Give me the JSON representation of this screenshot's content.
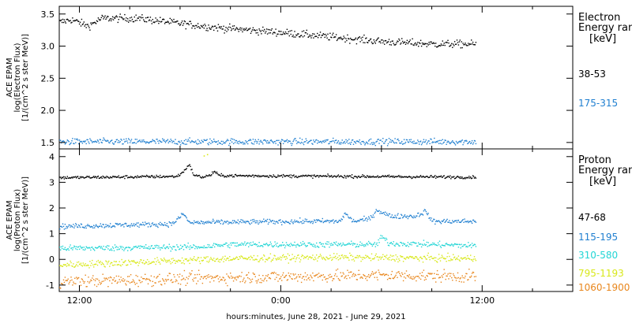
{
  "chart_data": {
    "type": "scatter",
    "xlabel": "hours:minutes, June 28, 2021 - June 29, 2021",
    "x_tick_labels": [
      "12:00",
      "0:00",
      "12:00"
    ],
    "x_tick_hours": [
      12,
      24,
      36
    ],
    "x_range_hours": [
      10.8,
      41.4
    ],
    "x_minor_step_hours": 3,
    "data_range_hours": [
      10.8,
      35.6
    ],
    "panels": [
      {
        "ylabel_lines": [
          "ACE EPAM",
          "log(Electron Flux)",
          "[1/(cm^2 s ster MeV)]"
        ],
        "ylim": [
          1.4,
          3.62
        ],
        "y_ticks": [
          1.5,
          2.0,
          2.5,
          3.0,
          3.5
        ],
        "y_tick_labels": [
          "1.5",
          "2.0",
          "2.5",
          "3.0",
          "3.5"
        ],
        "legend_title": [
          "Electron",
          "Energy range",
          "[keV]"
        ],
        "series": [
          {
            "name": "38-53",
            "color": "#000000",
            "noise": 0.03,
            "points": [
              [
                10.8,
                3.38
              ],
              [
                11.5,
                3.42
              ],
              [
                12.5,
                3.32
              ],
              [
                13.3,
                3.44
              ],
              [
                15.5,
                3.44
              ],
              [
                18.0,
                3.36
              ],
              [
                20.0,
                3.3
              ],
              [
                24.0,
                3.22
              ],
              [
                27.0,
                3.15
              ],
              [
                30.0,
                3.08
              ],
              [
                33.0,
                3.04
              ],
              [
                35.6,
                3.04
              ]
            ]
          },
          {
            "name": "175-315",
            "color": "#1f7fd0",
            "noise": 0.025,
            "points": [
              [
                10.8,
                1.52
              ],
              [
                35.6,
                1.52
              ]
            ]
          }
        ]
      },
      {
        "ylabel_lines": [
          "ACE EPAM",
          "log(Proton Flux)",
          "[1/(cm^2 s ster MeV)]"
        ],
        "ylim": [
          -1.25,
          4.3
        ],
        "y_ticks": [
          -1,
          0,
          1,
          2,
          3,
          4
        ],
        "y_tick_labels": [
          "-1",
          "0",
          "1",
          "2",
          "3",
          "4"
        ],
        "legend_title": [
          "Proton",
          "Energy range",
          "[keV]"
        ],
        "series": [
          {
            "name": "47-68",
            "color": "#000000",
            "noise": 0.03,
            "points": [
              [
                10.8,
                3.2
              ],
              [
                17.8,
                3.25
              ],
              [
                18.2,
                3.45
              ],
              [
                18.5,
                3.72
              ],
              [
                18.8,
                3.3
              ],
              [
                19.3,
                3.22
              ],
              [
                19.8,
                3.3
              ],
              [
                20.0,
                3.45
              ],
              [
                20.3,
                3.28
              ],
              [
                35.6,
                3.22
              ]
            ]
          },
          {
            "name": "115-195",
            "color": "#1f7fd0",
            "noise": 0.05,
            "points": [
              [
                10.8,
                1.3
              ],
              [
                17.5,
                1.4
              ],
              [
                18.2,
                1.8
              ],
              [
                18.5,
                1.45
              ],
              [
                25.5,
                1.5
              ],
              [
                27.5,
                1.5
              ],
              [
                27.8,
                1.8
              ],
              [
                28.3,
                1.5
              ],
              [
                29.3,
                1.6
              ],
              [
                29.7,
                1.95
              ],
              [
                30.5,
                1.7
              ],
              [
                32.0,
                1.7
              ],
              [
                32.6,
                1.9
              ],
              [
                33.0,
                1.5
              ],
              [
                35.6,
                1.5
              ]
            ]
          },
          {
            "name": "310-580",
            "color": "#22d5d5",
            "noise": 0.06,
            "points": [
              [
                10.8,
                0.45
              ],
              [
                19.0,
                0.5
              ],
              [
                21.0,
                0.6
              ],
              [
                29.7,
                0.6
              ],
              [
                30.0,
                0.9
              ],
              [
                30.4,
                0.65
              ],
              [
                35.6,
                0.55
              ]
            ]
          },
          {
            "name": "795-1193",
            "color": "#d8e81a",
            "noise": 0.07,
            "points": [
              [
                10.8,
                -0.2
              ],
              [
                17.0,
                -0.05
              ],
              [
                21.0,
                0.05
              ],
              [
                27.0,
                0.1
              ],
              [
                35.6,
                0.05
              ]
            ]
          },
          {
            "name": "1060-1900",
            "color": "#e8861c",
            "noise": 0.12,
            "points": [
              [
                10.8,
                -0.85
              ],
              [
                20.0,
                -0.7
              ],
              [
                30.0,
                -0.6
              ],
              [
                35.6,
                -0.65
              ]
            ]
          }
        ],
        "outliers": [
          {
            "color": "#d8e81a",
            "points": [
              [
                19.4,
                4.05
              ],
              [
                19.6,
                4.1
              ]
            ]
          }
        ]
      }
    ]
  }
}
